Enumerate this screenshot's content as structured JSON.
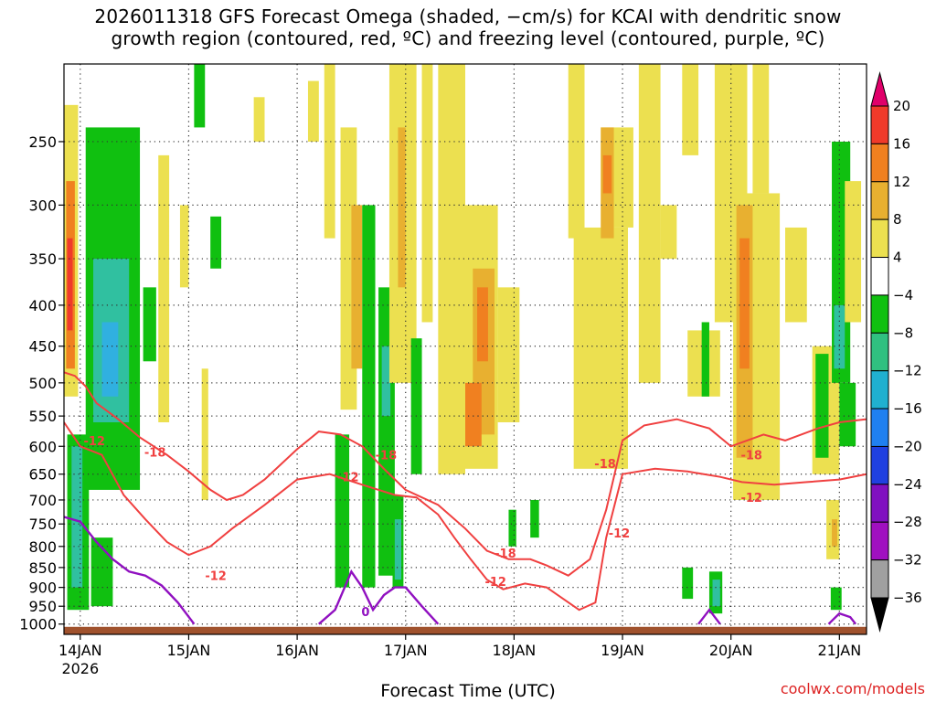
{
  "chart_data": {
    "type": "heatmap",
    "title_line1": "2026011318 GFS Forecast Omega (shaded, −cm/s) for KCAI with dendritic snow",
    "title_line2": "growth region (contoured, red, ºC) and freezing level (contoured, purple, ºC)",
    "xlabel": "Forecast Time (UTC)",
    "ylabel": "",
    "credit": "coolwx.com/models",
    "x_ticks": [
      {
        "day": 14,
        "label": "14JAN",
        "sublabel": "2026"
      },
      {
        "day": 15,
        "label": "15JAN"
      },
      {
        "day": 16,
        "label": "16JAN"
      },
      {
        "day": 17,
        "label": "17JAN"
      },
      {
        "day": 18,
        "label": "18JAN"
      },
      {
        "day": 19,
        "label": "19JAN"
      },
      {
        "day": 20,
        "label": "20JAN"
      },
      {
        "day": 21,
        "label": "21JAN"
      }
    ],
    "xlim_day": [
      13.85,
      21.25
    ],
    "y_axis_units": "hPa",
    "y_scale": "log-pressure",
    "ylim": [
      1030,
      200
    ],
    "y_ticks": [
      250,
      300,
      350,
      400,
      450,
      500,
      550,
      600,
      650,
      700,
      750,
      800,
      850,
      900,
      950,
      1000
    ],
    "grid": true,
    "colorbar": {
      "levels": [
        20,
        16,
        12,
        8,
        4,
        -4,
        -8,
        -12,
        -16,
        -20,
        -24,
        -28,
        -32,
        -36
      ],
      "colors": [
        "#e0006a",
        "#f03a2a",
        "#f08020",
        "#e8b030",
        "#ece050",
        "#ffffff",
        "#10c010",
        "#30c080",
        "#20b0d0",
        "#2080f0",
        "#2040e0",
        "#8010c0",
        "#a010c0",
        "#a0a0a0",
        "#000000"
      ]
    },
    "colors": {
      "green": "#10c010",
      "teal": "#30c0a0",
      "cyan": "#30b0e0",
      "blue": "#2080f0",
      "yellow": "#ece050",
      "gold": "#e8b030",
      "orange": "#f08020",
      "red": "#f03a2a",
      "magenta": "#e0006a",
      "contour_red": "#f04040",
      "contour_purple": "#9010c0",
      "ground": "#a0522d"
    },
    "contour_labels": [
      {
        "text": "-12",
        "day": 14.13,
        "p": 590
      },
      {
        "text": "-18",
        "day": 14.69,
        "p": 610
      },
      {
        "text": "-12",
        "day": 15.25,
        "p": 870
      },
      {
        "text": "-12",
        "day": 16.47,
        "p": 655
      },
      {
        "text": "-18",
        "day": 16.82,
        "p": 615
      },
      {
        "text": "-18",
        "day": 17.92,
        "p": 815
      },
      {
        "text": "-12",
        "day": 17.83,
        "p": 885
      },
      {
        "text": "-18",
        "day": 18.84,
        "p": 630
      },
      {
        "text": "-12",
        "day": 18.97,
        "p": 770
      },
      {
        "text": "-18",
        "day": 20.19,
        "p": 615
      },
      {
        "text": "-12",
        "day": 20.19,
        "p": 695
      },
      {
        "text": "0",
        "day": 16.63,
        "p": 965
      }
    ],
    "dgz_contours": [
      [
        [
          13.85,
          485
        ],
        [
          13.95,
          490
        ],
        [
          14.05,
          505
        ],
        [
          14.15,
          530
        ],
        [
          14.35,
          555
        ],
        [
          14.55,
          585
        ],
        [
          14.8,
          615
        ],
        [
          15.0,
          645
        ],
        [
          15.2,
          680
        ],
        [
          15.35,
          700
        ],
        [
          15.5,
          690
        ],
        [
          15.7,
          660
        ],
        [
          16.0,
          605
        ],
        [
          16.2,
          575
        ],
        [
          16.4,
          580
        ],
        [
          16.6,
          600
        ],
        [
          16.8,
          640
        ],
        [
          17.0,
          680
        ],
        [
          17.3,
          710
        ],
        [
          17.55,
          760
        ],
        [
          17.75,
          810
        ],
        [
          17.95,
          830
        ],
        [
          18.15,
          830
        ],
        [
          18.3,
          845
        ],
        [
          18.5,
          870
        ],
        [
          18.7,
          830
        ],
        [
          18.85,
          720
        ],
        [
          19.0,
          590
        ],
        [
          19.2,
          565
        ],
        [
          19.5,
          555
        ],
        [
          19.8,
          570
        ],
        [
          20.0,
          600
        ],
        [
          20.3,
          580
        ],
        [
          20.5,
          590
        ],
        [
          20.8,
          570
        ],
        [
          21.0,
          560
        ],
        [
          21.25,
          555
        ]
      ],
      [
        [
          13.85,
          560
        ],
        [
          14.0,
          600
        ],
        [
          14.2,
          615
        ],
        [
          14.4,
          690
        ],
        [
          14.6,
          740
        ],
        [
          14.8,
          790
        ],
        [
          15.0,
          820
        ],
        [
          15.2,
          800
        ],
        [
          15.4,
          760
        ],
        [
          15.7,
          710
        ],
        [
          16.0,
          660
        ],
        [
          16.3,
          650
        ],
        [
          16.6,
          670
        ],
        [
          16.9,
          690
        ],
        [
          17.1,
          695
        ],
        [
          17.3,
          730
        ],
        [
          17.45,
          780
        ],
        [
          17.6,
          830
        ],
        [
          17.75,
          880
        ],
        [
          17.9,
          905
        ],
        [
          18.1,
          890
        ],
        [
          18.3,
          900
        ],
        [
          18.6,
          960
        ],
        [
          18.75,
          940
        ],
        [
          18.85,
          780
        ],
        [
          19.0,
          650
        ],
        [
          19.3,
          640
        ],
        [
          19.6,
          645
        ],
        [
          19.9,
          655
        ],
        [
          20.1,
          665
        ],
        [
          20.4,
          670
        ],
        [
          20.7,
          665
        ],
        [
          21.0,
          660
        ],
        [
          21.25,
          650
        ]
      ]
    ],
    "freezing_contours": [
      [
        [
          13.85,
          735
        ],
        [
          14.0,
          745
        ],
        [
          14.15,
          790
        ],
        [
          14.3,
          830
        ],
        [
          14.45,
          860
        ],
        [
          14.6,
          870
        ],
        [
          14.75,
          895
        ],
        [
          14.9,
          940
        ],
        [
          15.05,
          1000
        ]
      ],
      [
        [
          16.2,
          1000
        ],
        [
          16.35,
          960
        ],
        [
          16.5,
          860
        ],
        [
          16.6,
          900
        ],
        [
          16.7,
          960
        ],
        [
          16.8,
          920
        ],
        [
          16.9,
          900
        ],
        [
          17.0,
          900
        ],
        [
          17.15,
          950
        ],
        [
          17.3,
          1000
        ]
      ],
      [
        [
          19.7,
          1000
        ],
        [
          19.8,
          960
        ],
        [
          19.9,
          1000
        ]
      ],
      [
        [
          20.9,
          1000
        ],
        [
          21.0,
          970
        ],
        [
          21.1,
          980
        ],
        [
          21.15,
          1000
        ]
      ]
    ],
    "shaded_cells": [
      {
        "c": "green",
        "d0": 13.88,
        "d1": 14.08,
        "p0": 580,
        "p1": 960
      },
      {
        "c": "teal",
        "d0": 13.92,
        "d1": 14.02,
        "p0": 600,
        "p1": 900
      },
      {
        "c": "yellow",
        "d0": 13.85,
        "d1": 13.98,
        "p0": 225,
        "p1": 520
      },
      {
        "c": "orange",
        "d0": 13.87,
        "d1": 13.95,
        "p0": 280,
        "p1": 480
      },
      {
        "c": "red",
        "d0": 13.88,
        "d1": 13.93,
        "p0": 330,
        "p1": 430
      },
      {
        "c": "green",
        "d0": 14.05,
        "d1": 14.55,
        "p0": 240,
        "p1": 680
      },
      {
        "c": "teal",
        "d0": 14.12,
        "d1": 14.45,
        "p0": 350,
        "p1": 560
      },
      {
        "c": "cyan",
        "d0": 14.2,
        "d1": 14.35,
        "p0": 420,
        "p1": 520
      },
      {
        "c": "green",
        "d0": 14.1,
        "d1": 14.3,
        "p0": 780,
        "p1": 950
      },
      {
        "c": "green",
        "d0": 14.58,
        "d1": 14.7,
        "p0": 380,
        "p1": 470
      },
      {
        "c": "yellow",
        "d0": 14.72,
        "d1": 14.82,
        "p0": 260,
        "p1": 560
      },
      {
        "c": "yellow",
        "d0": 14.92,
        "d1": 15.0,
        "p0": 300,
        "p1": 380
      },
      {
        "c": "green",
        "d0": 15.05,
        "d1": 15.15,
        "p0": 200,
        "p1": 240
      },
      {
        "c": "green",
        "d0": 15.2,
        "d1": 15.3,
        "p0": 310,
        "p1": 360
      },
      {
        "c": "yellow",
        "d0": 15.12,
        "d1": 15.18,
        "p0": 480,
        "p1": 700
      },
      {
        "c": "yellow",
        "d0": 15.6,
        "d1": 15.7,
        "p0": 220,
        "p1": 250
      },
      {
        "c": "yellow",
        "d0": 16.1,
        "d1": 16.2,
        "p0": 210,
        "p1": 250
      },
      {
        "c": "yellow",
        "d0": 16.25,
        "d1": 16.35,
        "p0": 200,
        "p1": 330
      },
      {
        "c": "yellow",
        "d0": 16.4,
        "d1": 16.55,
        "p0": 240,
        "p1": 540
      },
      {
        "c": "gold",
        "d0": 16.5,
        "d1": 16.6,
        "p0": 300,
        "p1": 480
      },
      {
        "c": "green",
        "d0": 16.35,
        "d1": 16.48,
        "p0": 580,
        "p1": 900
      },
      {
        "c": "green",
        "d0": 16.6,
        "d1": 16.72,
        "p0": 300,
        "p1": 900
      },
      {
        "c": "green",
        "d0": 16.75,
        "d1": 16.9,
        "p0": 380,
        "p1": 870
      },
      {
        "c": "teal",
        "d0": 16.78,
        "d1": 16.86,
        "p0": 450,
        "p1": 550
      },
      {
        "c": "green",
        "d0": 16.88,
        "d1": 16.98,
        "p0": 690,
        "p1": 900
      },
      {
        "c": "teal",
        "d0": 16.9,
        "d1": 16.96,
        "p0": 740,
        "p1": 880
      },
      {
        "c": "yellow",
        "d0": 16.85,
        "d1": 17.1,
        "p0": 200,
        "p1": 500
      },
      {
        "c": "gold",
        "d0": 16.93,
        "d1": 17.0,
        "p0": 240,
        "p1": 380
      },
      {
        "c": "green",
        "d0": 17.05,
        "d1": 17.15,
        "p0": 440,
        "p1": 650
      },
      {
        "c": "yellow",
        "d0": 17.15,
        "d1": 17.25,
        "p0": 200,
        "p1": 420
      },
      {
        "c": "yellow",
        "d0": 17.3,
        "d1": 17.55,
        "p0": 200,
        "p1": 650
      },
      {
        "c": "yellow",
        "d0": 17.55,
        "d1": 17.85,
        "p0": 300,
        "p1": 640
      },
      {
        "c": "gold",
        "d0": 17.62,
        "d1": 17.82,
        "p0": 360,
        "p1": 580
      },
      {
        "c": "orange",
        "d0": 17.66,
        "d1": 17.76,
        "p0": 380,
        "p1": 470
      },
      {
        "c": "orange",
        "d0": 17.55,
        "d1": 17.7,
        "p0": 500,
        "p1": 600
      },
      {
        "c": "yellow",
        "d0": 17.85,
        "d1": 18.05,
        "p0": 380,
        "p1": 560
      },
      {
        "c": "green",
        "d0": 17.95,
        "d1": 18.02,
        "p0": 720,
        "p1": 800
      },
      {
        "c": "green",
        "d0": 18.15,
        "d1": 18.23,
        "p0": 700,
        "p1": 780
      },
      {
        "c": "yellow",
        "d0": 18.5,
        "d1": 18.65,
        "p0": 200,
        "p1": 330
      },
      {
        "c": "yellow",
        "d0": 18.55,
        "d1": 19.05,
        "p0": 320,
        "p1": 640
      },
      {
        "c": "yellow",
        "d0": 18.8,
        "d1": 19.1,
        "p0": 240,
        "p1": 320
      },
      {
        "c": "gold",
        "d0": 18.8,
        "d1": 18.92,
        "p0": 240,
        "p1": 330
      },
      {
        "c": "orange",
        "d0": 18.82,
        "d1": 18.9,
        "p0": 260,
        "p1": 290
      },
      {
        "c": "yellow",
        "d0": 19.15,
        "d1": 19.35,
        "p0": 200,
        "p1": 500
      },
      {
        "c": "yellow",
        "d0": 19.35,
        "d1": 19.5,
        "p0": 300,
        "p1": 350
      },
      {
        "c": "yellow",
        "d0": 19.55,
        "d1": 19.7,
        "p0": 200,
        "p1": 260
      },
      {
        "c": "yellow",
        "d0": 19.6,
        "d1": 19.9,
        "p0": 430,
        "p1": 520
      },
      {
        "c": "green",
        "d0": 19.73,
        "d1": 19.8,
        "p0": 420,
        "p1": 520
      },
      {
        "c": "yellow",
        "d0": 19.85,
        "d1": 20.15,
        "p0": 200,
        "p1": 420
      },
      {
        "c": "yellow",
        "d0": 20.02,
        "d1": 20.45,
        "p0": 290,
        "p1": 700
      },
      {
        "c": "gold",
        "d0": 20.05,
        "d1": 20.2,
        "p0": 300,
        "p1": 620
      },
      {
        "c": "orange",
        "d0": 20.08,
        "d1": 20.17,
        "p0": 330,
        "p1": 480
      },
      {
        "c": "yellow",
        "d0": 20.2,
        "d1": 20.35,
        "p0": 200,
        "p1": 290
      },
      {
        "c": "yellow",
        "d0": 20.5,
        "d1": 20.7,
        "p0": 320,
        "p1": 420
      },
      {
        "c": "yellow",
        "d0": 20.75,
        "d1": 21.0,
        "p0": 450,
        "p1": 650
      },
      {
        "c": "green",
        "d0": 20.93,
        "d1": 21.1,
        "p0": 250,
        "p1": 500
      },
      {
        "c": "teal",
        "d0": 20.95,
        "d1": 21.05,
        "p0": 400,
        "p1": 480
      },
      {
        "c": "green",
        "d0": 20.78,
        "d1": 20.9,
        "p0": 460,
        "p1": 620
      },
      {
        "c": "yellow",
        "d0": 21.05,
        "d1": 21.2,
        "p0": 280,
        "p1": 420
      },
      {
        "c": "green",
        "d0": 21.0,
        "d1": 21.15,
        "p0": 500,
        "p1": 600
      },
      {
        "c": "yellow",
        "d0": 20.88,
        "d1": 21.0,
        "p0": 700,
        "p1": 830
      },
      {
        "c": "gold",
        "d0": 20.93,
        "d1": 20.98,
        "p0": 740,
        "p1": 800
      },
      {
        "c": "green",
        "d0": 19.55,
        "d1": 19.65,
        "p0": 850,
        "p1": 930
      },
      {
        "c": "green",
        "d0": 19.8,
        "d1": 19.92,
        "p0": 860,
        "p1": 970
      },
      {
        "c": "teal",
        "d0": 19.83,
        "d1": 19.9,
        "p0": 880,
        "p1": 950
      },
      {
        "c": "green",
        "d0": 20.92,
        "d1": 21.02,
        "p0": 900,
        "p1": 960
      }
    ]
  }
}
